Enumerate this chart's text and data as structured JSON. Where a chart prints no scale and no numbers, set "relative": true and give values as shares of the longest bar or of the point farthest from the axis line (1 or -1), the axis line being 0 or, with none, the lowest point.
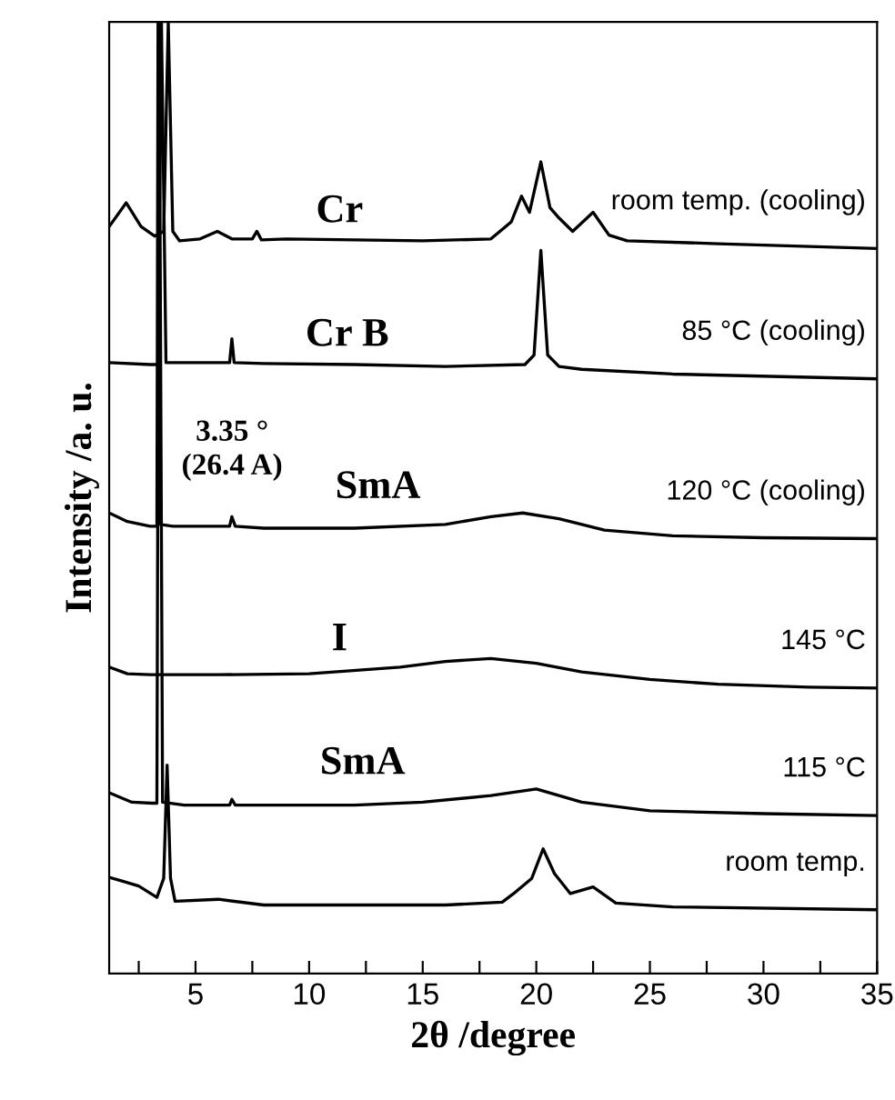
{
  "chart_data": {
    "type": "line",
    "relative": true,
    "xlabel": "2θ /degree",
    "ylabel": "Intensity /a. u.",
    "xlim": [
      1.2,
      35
    ],
    "xticks": [
      {
        "value": 2.5,
        "label": null
      },
      5,
      {
        "value": 7.5,
        "label": null
      },
      10,
      {
        "value": 12.5,
        "label": null
      },
      15,
      {
        "value": 17.5,
        "label": null
      },
      20,
      {
        "value": 22.5,
        "label": null
      },
      25,
      {
        "value": 27.5,
        "label": null
      },
      30,
      {
        "value": 32.5,
        "label": null
      },
      35
    ],
    "tick_labels": "x",
    "grid": false,
    "legend": false,
    "marker": "none",
    "line_style": "solid",
    "annotations": [
      "Cr",
      "Cr B",
      "3.35 °\n(26.4 A)",
      "SmA",
      "I",
      "SmA"
    ],
    "series": [
      {
        "name": "room temp. (cooling)",
        "color": "#000000",
        "x": [
          1.2,
          1.95,
          2.6,
          3.2,
          3.6,
          3.8,
          4.0,
          4.3,
          5.2,
          5.96,
          6.6,
          7.5,
          7.7,
          7.9,
          9,
          12,
          15,
          18,
          18.9,
          19.35,
          19.7,
          20.2,
          20.6,
          21,
          21.6,
          22.5,
          23.2,
          24,
          28,
          35
        ],
        "values": [
          0.785,
          0.81,
          0.785,
          0.775,
          0.78,
          1.0,
          0.78,
          0.77,
          0.772,
          0.78,
          0.772,
          0.772,
          0.78,
          0.771,
          0.772,
          0.771,
          0.77,
          0.772,
          0.79,
          0.817,
          0.8,
          0.853,
          0.805,
          0.794,
          0.78,
          0.8,
          0.776,
          0.77,
          0.767,
          0.762
        ]
      },
      {
        "name": "85 °C (cooling)",
        "color": "#000000",
        "x": [
          1.2,
          3.0,
          3.35,
          3.5,
          3.7,
          5,
          6.5,
          6.6,
          6.7,
          8,
          12,
          16,
          19.5,
          19.9,
          20.2,
          20.5,
          21,
          22,
          26,
          35
        ],
        "values": [
          0.642,
          0.64,
          0.64,
          1.0,
          0.642,
          0.642,
          0.642,
          0.667,
          0.642,
          0.641,
          0.64,
          0.638,
          0.64,
          0.65,
          0.76,
          0.65,
          0.638,
          0.635,
          0.63,
          0.625
        ]
      },
      {
        "name": "120 °C (cooling)",
        "color": "#000000",
        "x": [
          1.2,
          2.0,
          3.0,
          3.3,
          3.35,
          3.45,
          4,
          6.5,
          6.6,
          6.75,
          8,
          12,
          16,
          18,
          19.4,
          21,
          23,
          26,
          30,
          35
        ],
        "values": [
          0.484,
          0.475,
          0.47,
          0.47,
          1.0,
          0.472,
          0.47,
          0.47,
          0.48,
          0.47,
          0.468,
          0.468,
          0.472,
          0.48,
          0.484,
          0.478,
          0.466,
          0.46,
          0.458,
          0.457
        ]
      },
      {
        "name": "145 °C",
        "color": "#000000",
        "x": [
          1.2,
          2,
          3,
          6,
          10,
          14,
          16,
          18,
          20,
          22,
          25,
          28,
          32,
          35
        ],
        "values": [
          0.322,
          0.315,
          0.314,
          0.314,
          0.315,
          0.322,
          0.328,
          0.331,
          0.326,
          0.317,
          0.309,
          0.304,
          0.301,
          0.3
        ]
      },
      {
        "name": "115 °C",
        "color": "#000000",
        "x": [
          1.2,
          2.2,
          3.1,
          3.3,
          3.4,
          3.55,
          4.5,
          6.5,
          6.6,
          6.75,
          8,
          12,
          15,
          18,
          20,
          22,
          25,
          30,
          35
        ],
        "values": [
          0.19,
          0.18,
          0.179,
          0.179,
          1.0,
          0.18,
          0.177,
          0.177,
          0.183,
          0.177,
          0.177,
          0.177,
          0.18,
          0.187,
          0.194,
          0.18,
          0.171,
          0.168,
          0.166
        ]
      },
      {
        "name": "room temp.",
        "color": "#000000",
        "x": [
          1.2,
          1.8,
          2.5,
          3.3,
          3.6,
          3.75,
          3.9,
          4.1,
          6,
          8,
          12,
          16,
          18.5,
          19,
          19.8,
          20.3,
          20.8,
          21.5,
          22.5,
          23.5,
          26,
          35
        ],
        "values": [
          0.101,
          0.097,
          0.092,
          0.08,
          0.1,
          0.219,
          0.1,
          0.076,
          0.078,
          0.072,
          0.072,
          0.072,
          0.075,
          0.084,
          0.1,
          0.131,
          0.105,
          0.084,
          0.091,
          0.074,
          0.07,
          0.067
        ]
      }
    ]
  }
}
